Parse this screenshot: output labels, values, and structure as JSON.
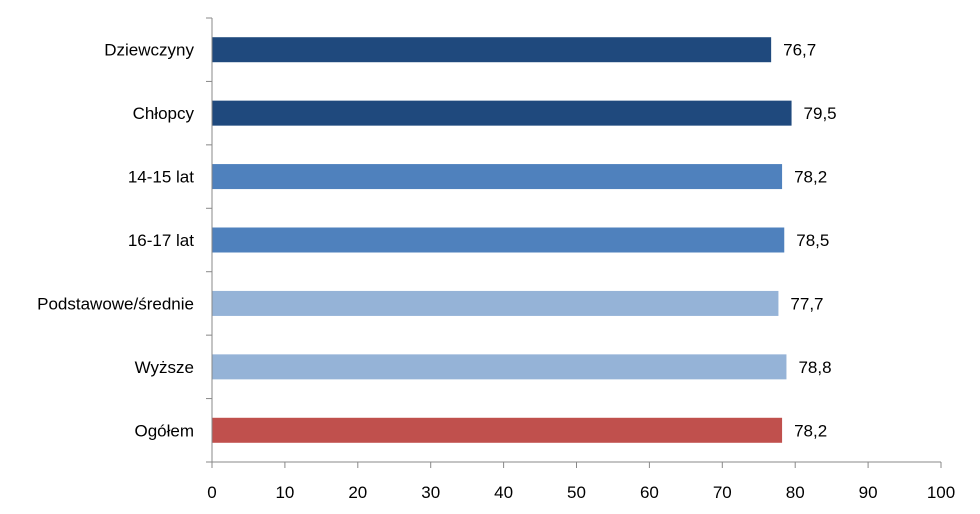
{
  "chart_data": {
    "type": "bar",
    "orientation": "horizontal",
    "categories": [
      "Dziewczyny",
      "Chłopcy",
      "14-15 lat",
      "16-17 lat",
      "Podstawowe/średnie",
      "Wyższe",
      "Ogółem"
    ],
    "values": [
      76.7,
      79.5,
      78.2,
      78.5,
      77.7,
      78.8,
      78.2
    ],
    "value_labels": [
      "76,7",
      "79,5",
      "78,2",
      "78,5",
      "77,7",
      "78,8",
      "78,2"
    ],
    "colors": [
      "#1f497d",
      "#1f497d",
      "#4f81bd",
      "#4f81bd",
      "#95b3d7",
      "#95b3d7",
      "#c0504d"
    ],
    "xlim": [
      0,
      100
    ],
    "xticks": [
      "0",
      "10",
      "20",
      "30",
      "40",
      "50",
      "60",
      "70",
      "80",
      "90",
      "100"
    ],
    "grid": false,
    "legend": "none"
  }
}
